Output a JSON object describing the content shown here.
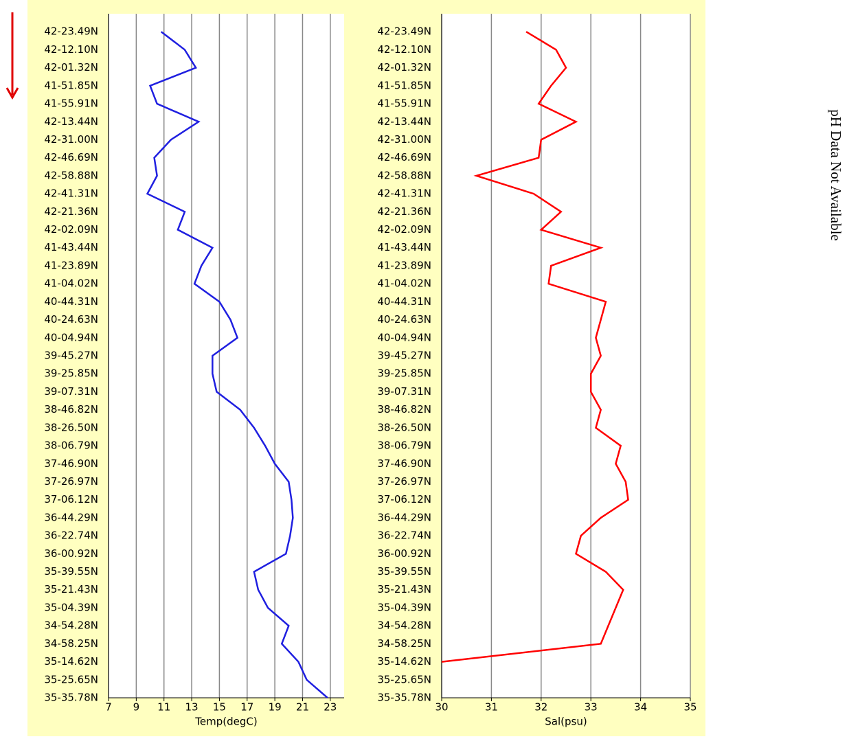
{
  "chart_data": [
    {
      "type": "line",
      "orientation": "horizontal",
      "xlabel": "Temp(degC)",
      "color": "#1f1fe0",
      "xlim": [
        7,
        24
      ],
      "xticks": [
        7,
        9,
        11,
        13,
        15,
        17,
        19,
        21,
        23
      ],
      "grid": true,
      "categories": [
        "42-23.49N",
        "42-12.10N",
        "42-01.32N",
        "41-51.85N",
        "41-55.91N",
        "42-13.44N",
        "42-31.00N",
        "42-46.69N",
        "42-58.88N",
        "42-41.31N",
        "42-21.36N",
        "42-02.09N",
        "41-43.44N",
        "41-23.89N",
        "41-04.02N",
        "40-44.31N",
        "40-24.63N",
        "40-04.94N",
        "39-45.27N",
        "39-25.85N",
        "39-07.31N",
        "38-46.82N",
        "38-26.50N",
        "38-06.79N",
        "37-46.90N",
        "37-26.97N",
        "37-06.12N",
        "36-44.29N",
        "36-22.74N",
        "36-00.92N",
        "35-39.55N",
        "35-21.43N",
        "35-04.39N",
        "34-54.28N",
        "34-58.25N",
        "35-14.62N",
        "35-25.65N",
        "35-35.78N"
      ],
      "values": [
        10.8,
        12.5,
        13.3,
        10.0,
        10.5,
        13.5,
        11.5,
        10.3,
        10.5,
        9.8,
        12.5,
        12.0,
        14.5,
        13.7,
        13.2,
        15.0,
        15.8,
        16.3,
        14.5,
        14.5,
        14.8,
        16.5,
        17.5,
        18.3,
        19.0,
        20.0,
        20.2,
        20.3,
        20.1,
        19.8,
        17.5,
        17.8,
        18.5,
        20.0,
        19.5,
        20.7,
        21.3,
        22.8
      ]
    },
    {
      "type": "line",
      "orientation": "horizontal",
      "xlabel": "Sal(psu)",
      "color": "#ff0000",
      "xlim": [
        30,
        35
      ],
      "xticks": [
        30,
        31,
        32,
        33,
        34,
        35
      ],
      "grid": true,
      "categories": [
        "42-23.49N",
        "42-12.10N",
        "42-01.32N",
        "41-51.85N",
        "41-55.91N",
        "42-13.44N",
        "42-31.00N",
        "42-46.69N",
        "42-58.88N",
        "42-41.31N",
        "42-21.36N",
        "42-02.09N",
        "41-43.44N",
        "41-23.89N",
        "41-04.02N",
        "40-44.31N",
        "40-24.63N",
        "40-04.94N",
        "39-45.27N",
        "39-25.85N",
        "39-07.31N",
        "38-46.82N",
        "38-26.50N",
        "38-06.79N",
        "37-46.90N",
        "37-26.97N",
        "37-06.12N",
        "36-44.29N",
        "36-22.74N",
        "36-00.92N",
        "35-39.55N",
        "35-21.43N",
        "35-04.39N",
        "34-54.28N",
        "34-58.25N",
        "35-14.62N",
        "35-25.65N",
        "35-35.78N"
      ],
      "values": [
        31.7,
        32.3,
        32.5,
        32.2,
        31.95,
        32.7,
        32.0,
        31.95,
        30.7,
        31.85,
        32.4,
        32.0,
        33.2,
        32.2,
        32.15,
        33.3,
        33.2,
        33.1,
        33.2,
        33.0,
        33.0,
        33.2,
        33.1,
        33.6,
        33.5,
        33.7,
        33.75,
        33.2,
        32.8,
        32.7,
        33.3,
        33.65,
        33.5,
        33.35,
        33.2,
        30.0,
        null,
        null
      ]
    }
  ],
  "annotation": "pH Data Not Available"
}
